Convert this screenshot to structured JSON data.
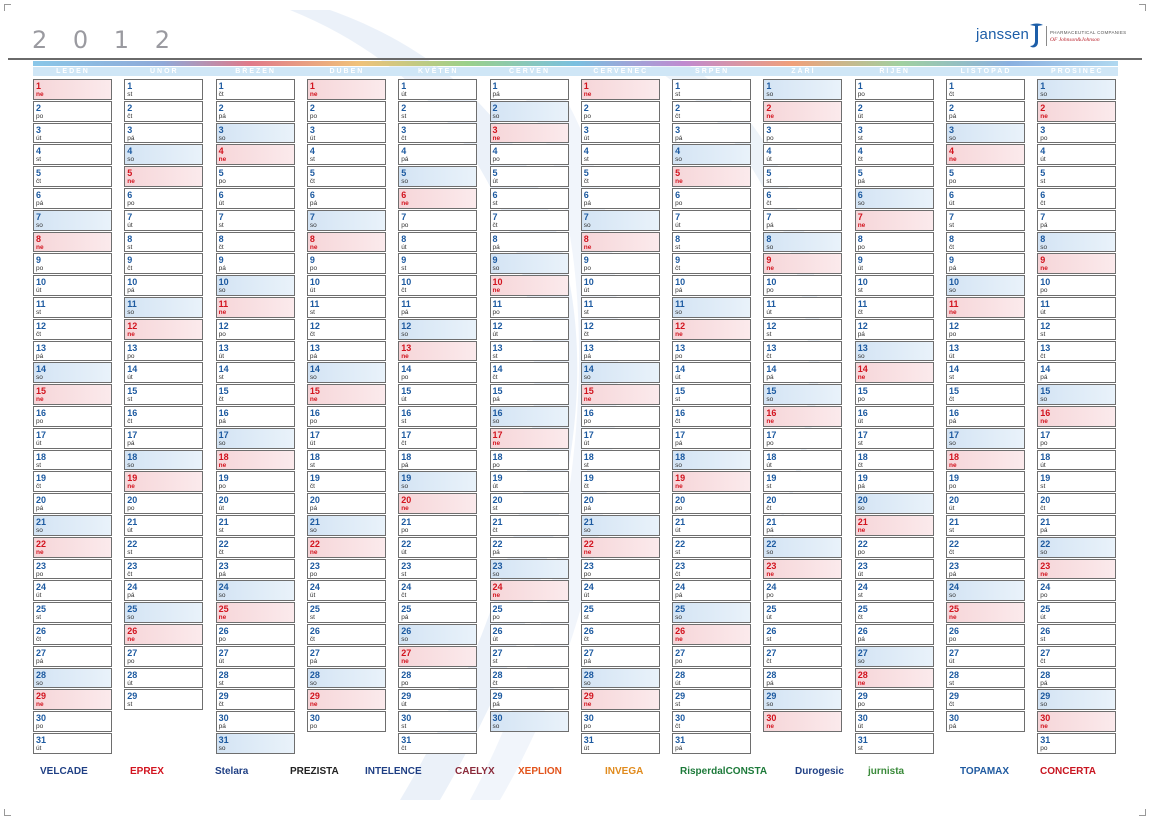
{
  "year": "2 0 1 2",
  "logo": {
    "name": "janssen",
    "line1": "PHARMACEUTICAL COMPANIES",
    "line2": "OF Johnson&Johnson"
  },
  "months": [
    {
      "name": "LEDEN",
      "days": 31,
      "start": 6
    },
    {
      "name": "ÚNOR",
      "days": 29,
      "start": 2
    },
    {
      "name": "BŘEZEN",
      "days": 31,
      "start": 3
    },
    {
      "name": "DUBEN",
      "days": 30,
      "start": 6
    },
    {
      "name": "KVĚTEN",
      "days": 31,
      "start": 1
    },
    {
      "name": "ČERVEN",
      "days": 30,
      "start": 4
    },
    {
      "name": "ČERVENEC",
      "days": 31,
      "start": 6
    },
    {
      "name": "SRPEN",
      "days": 31,
      "start": 2
    },
    {
      "name": "ZÁŘÍ",
      "days": 30,
      "start": 5
    },
    {
      "name": "ŘÍJEN",
      "days": 31,
      "start": 0
    },
    {
      "name": "LISTOPAD",
      "days": 30,
      "start": 3
    },
    {
      "name": "PROSINEC",
      "days": 31,
      "start": 5
    }
  ],
  "weekdays": [
    "po",
    "út",
    "st",
    "čt",
    "pá",
    "so",
    "ne"
  ],
  "brands": [
    {
      "label": "VELCADE",
      "color": "#1f3f84"
    },
    {
      "label": "EPREX",
      "color": "#d2141f"
    },
    {
      "label": "Stelara",
      "color": "#1f3f84"
    },
    {
      "label": "PREZISTA",
      "color": "#222222"
    },
    {
      "label": "INTELENCE",
      "color": "#1f3f84"
    },
    {
      "label": "CAELYX",
      "color": "#8a2a3a"
    },
    {
      "label": "XEPLION",
      "color": "#e2541c"
    },
    {
      "label": "INVEGA",
      "color": "#e08a1c"
    },
    {
      "label": "RisperdalCONSTA",
      "color": "#1d7a3a"
    },
    {
      "label": "Durogesic",
      "color": "#1f3f84"
    },
    {
      "label": "jurnista",
      "color": "#3a8a3a"
    },
    {
      "label": "TOPAMAX",
      "color": "#1f5aa0"
    },
    {
      "label": "CONCERTA",
      "color": "#c8141f"
    }
  ],
  "colors": {
    "weekday_number": "#1d5aa0",
    "sunday": "#d2141f",
    "month_bar": "#cfe6f6"
  }
}
